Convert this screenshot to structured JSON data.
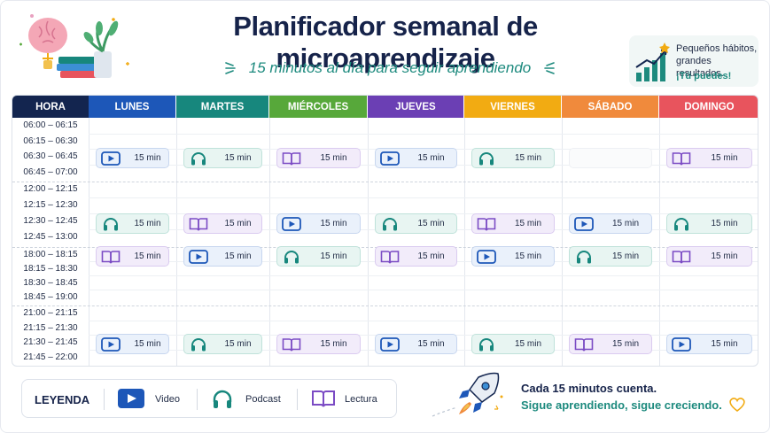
{
  "header": {
    "title": "Planificador semanal de microaprendizaje",
    "subtitle": "15 minutos al día para seguir aprendiendo",
    "motivation": {
      "line1": "Pequeños hábitos,",
      "line2": "grandes resultados.",
      "line3": "¡Tú puedes!"
    }
  },
  "colors": {
    "hora": "#13254f",
    "lunes": "#1d57b8",
    "martes": "#17877d",
    "miercoles": "#57a83a",
    "jueves": "#6b3fb4",
    "viernes": "#f2ab12",
    "sabado": "#f08a3c",
    "domingo": "#e8545d",
    "video": "#1d57b8",
    "podcast": "#17877d",
    "lectura": "#7b4bc4"
  },
  "table": {
    "time_header": "HORA",
    "days": [
      "LUNES",
      "MARTES",
      "MIÉRCOLES",
      "JUEVES",
      "VIERNES",
      "SÁBADO",
      "DOMINGO"
    ],
    "blocks": [
      {
        "times": [
          "06:00 – 06:15",
          "06:15 – 06:30",
          "06:30 – 06:45",
          "06:45 – 07:00"
        ],
        "activities": [
          "video",
          "podcast",
          "lectura",
          "video",
          "podcast",
          null,
          "lectura"
        ]
      },
      {
        "times": [
          "12:00 – 12:15",
          "12:15 – 12:30",
          "12:30 – 12:45",
          "12:45 – 13:00"
        ],
        "activities": [
          "podcast",
          "lectura",
          "video",
          "podcast",
          "lectura",
          "video",
          "podcast"
        ]
      },
      {
        "times": [
          "18:00 – 18:15",
          "18:15 – 18:30",
          "18:30 – 18:45",
          "18:45 – 19:00"
        ],
        "activities": [
          "lectura",
          "video",
          "podcast",
          "lectura",
          "video",
          "podcast",
          "lectura"
        ]
      },
      {
        "times": [
          "21:00 – 21:15",
          "21:15 – 21:30",
          "21:30 – 21:45",
          "21:45 – 22:00"
        ],
        "activities": [
          "video",
          "podcast",
          "lectura",
          "video",
          "podcast",
          "lectura",
          "video"
        ]
      }
    ],
    "duration_label": "15 min"
  },
  "legend": {
    "title": "LEYENDA",
    "items": [
      {
        "type": "video",
        "label": "Video"
      },
      {
        "type": "podcast",
        "label": "Podcast"
      },
      {
        "type": "lectura",
        "label": "Lectura"
      }
    ]
  },
  "footer": {
    "line1": "Cada 15 minutos cuenta.",
    "line2": "Sigue aprendiendo, sigue creciendo."
  }
}
